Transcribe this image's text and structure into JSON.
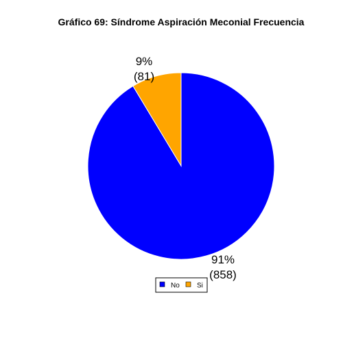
{
  "chart_data": {
    "type": "pie",
    "title": "Gráfico 69: Síndrome Aspiración Meconial Frecuencia",
    "slices": [
      {
        "name": "No",
        "value": 858,
        "percent_label": "91%",
        "count_label": "(858)",
        "color": "#0000FF"
      },
      {
        "name": "Si",
        "value": 81,
        "percent_label": "9%",
        "count_label": "(81)",
        "color": "#FFA500"
      }
    ],
    "legend": {
      "placement": "bottom-center",
      "entries": [
        "No",
        "Si"
      ]
    }
  }
}
